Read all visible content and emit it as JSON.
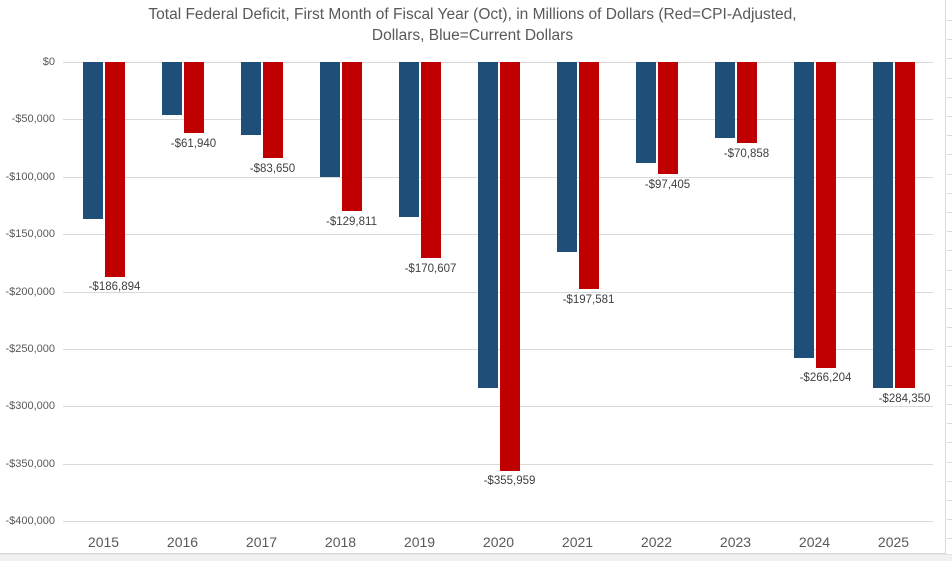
{
  "chart_data": {
    "type": "bar",
    "title_line1": "Total Federal Deficit, First Month of Fiscal Year (Oct), in Millions of Dollars (Red=CPI-Adjusted,",
    "title_line2": "Dollars, Blue=Current Dollars",
    "categories": [
      "2015",
      "2016",
      "2017",
      "2018",
      "2019",
      "2020",
      "2021",
      "2022",
      "2023",
      "2024",
      "2025"
    ],
    "series": [
      {
        "name": "Current Dollars",
        "color": "#1F4E79",
        "values": [
          -136500,
          -45800,
          -63300,
          -100500,
          -134600,
          -284100,
          -165100,
          -88000,
          -66600,
          -257500,
          -284350
        ],
        "values_note": "estimated from gridlines (unlabeled blue bars)"
      },
      {
        "name": "CPI-Adjusted Dollars",
        "color": "#C00000",
        "values": [
          -186894,
          -61940,
          -83650,
          -129811,
          -170607,
          -355959,
          -197581,
          -97405,
          -70858,
          -266204,
          -284350
        ],
        "labels": [
          "-$186,894",
          "-$61,940",
          "-$83,650",
          "-$129,811",
          "-$170,607",
          "-$355,959",
          "-$197,581",
          "-$97,405",
          "-$70,858",
          "-$266,204",
          "-$284,350"
        ]
      }
    ],
    "y_axis": {
      "min": -400000,
      "max": 0,
      "tick_step": 50000,
      "tick_labels": [
        "$0",
        "-$50,000",
        "-$100,000",
        "-$150,000",
        "-$200,000",
        "-$250,000",
        "-$300,000",
        "-$350,000",
        "-$400,000"
      ]
    },
    "grid": true,
    "legend_position": "none",
    "colors": {
      "grid": "#d9d9d9",
      "axis_text": "#595959",
      "title_text": "#595959",
      "data_label_text": "#404040"
    }
  }
}
